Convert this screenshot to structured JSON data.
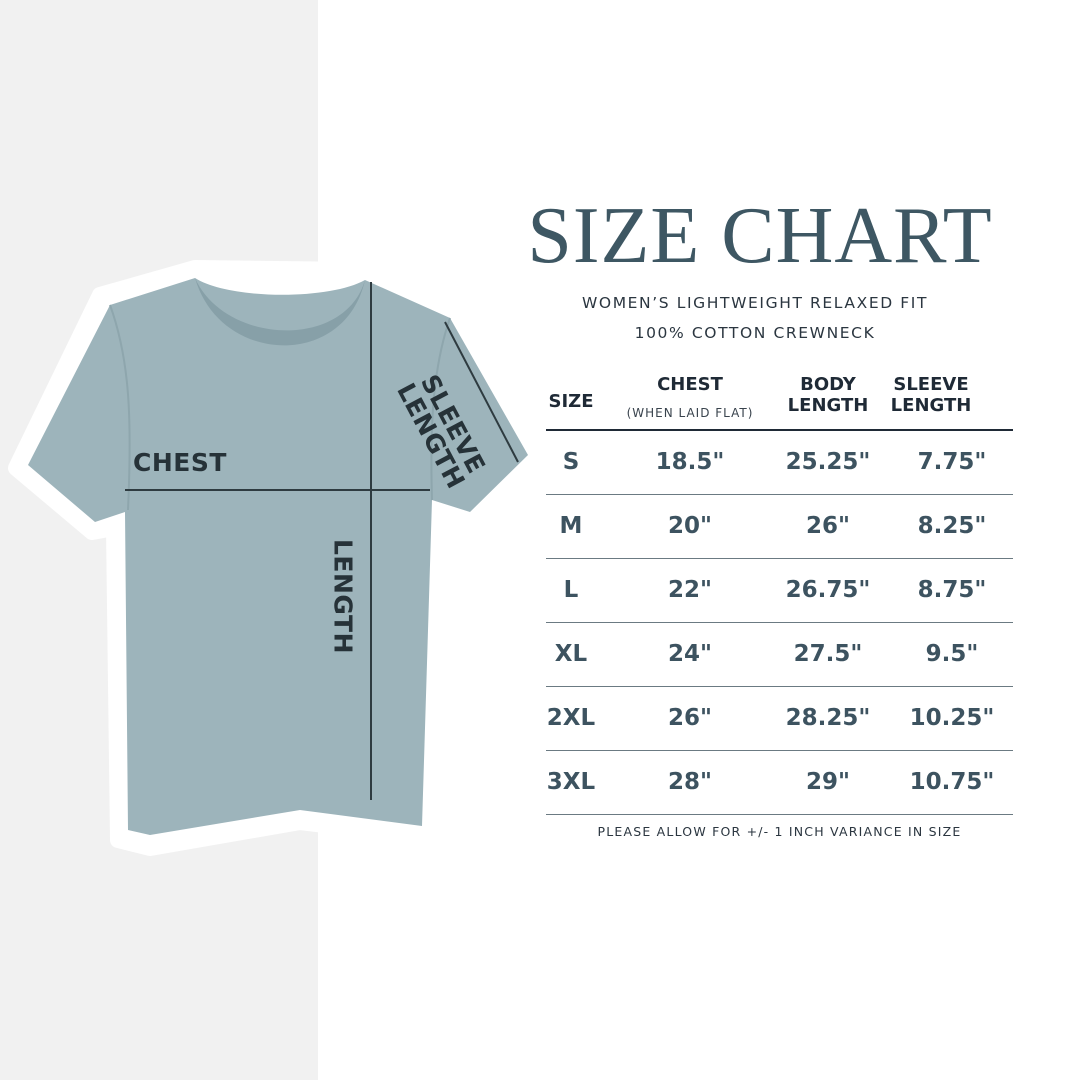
{
  "title": "SIZE CHART",
  "subtitle_line1": "WOMEN’S LIGHTWEIGHT RELAXED FIT",
  "subtitle_line2": "100% COTTON CREWNECK",
  "diagram": {
    "chest_label": "CHEST",
    "length_label": "LENGTH",
    "sleeve_label_line1": "SLEEVE",
    "sleeve_label_line2": "LENGTH",
    "shirt_color": "#9db4bb"
  },
  "table": {
    "headers": {
      "size": "SIZE",
      "chest": "CHEST",
      "chest_note": "(WHEN LAID FLAT)",
      "body_1": "BODY",
      "body_2": "LENGTH",
      "sleeve_1": "SLEEVE",
      "sleeve_2": "LENGTH"
    },
    "rows": [
      {
        "size": "S",
        "chest": "18.5\"",
        "body": "25.25\"",
        "sleeve": "7.75\""
      },
      {
        "size": "M",
        "chest": "20\"",
        "body": "26\"",
        "sleeve": "8.25\""
      },
      {
        "size": "L",
        "chest": "22\"",
        "body": "26.75\"",
        "sleeve": "8.75\""
      },
      {
        "size": "XL",
        "chest": "24\"",
        "body": "27.5\"",
        "sleeve": "9.5\""
      },
      {
        "size": "2XL",
        "chest": "26\"",
        "body": "28.25\"",
        "sleeve": "10.25\""
      },
      {
        "size": "3XL",
        "chest": "28\"",
        "body": "29\"",
        "sleeve": "10.75\""
      }
    ]
  },
  "note": "PLEASE ALLOW FOR +/- 1 INCH VARIANCE IN SIZE",
  "colors": {
    "title": "#3e5763",
    "values": "#3d5360",
    "background_left": "#f1f1f1"
  }
}
